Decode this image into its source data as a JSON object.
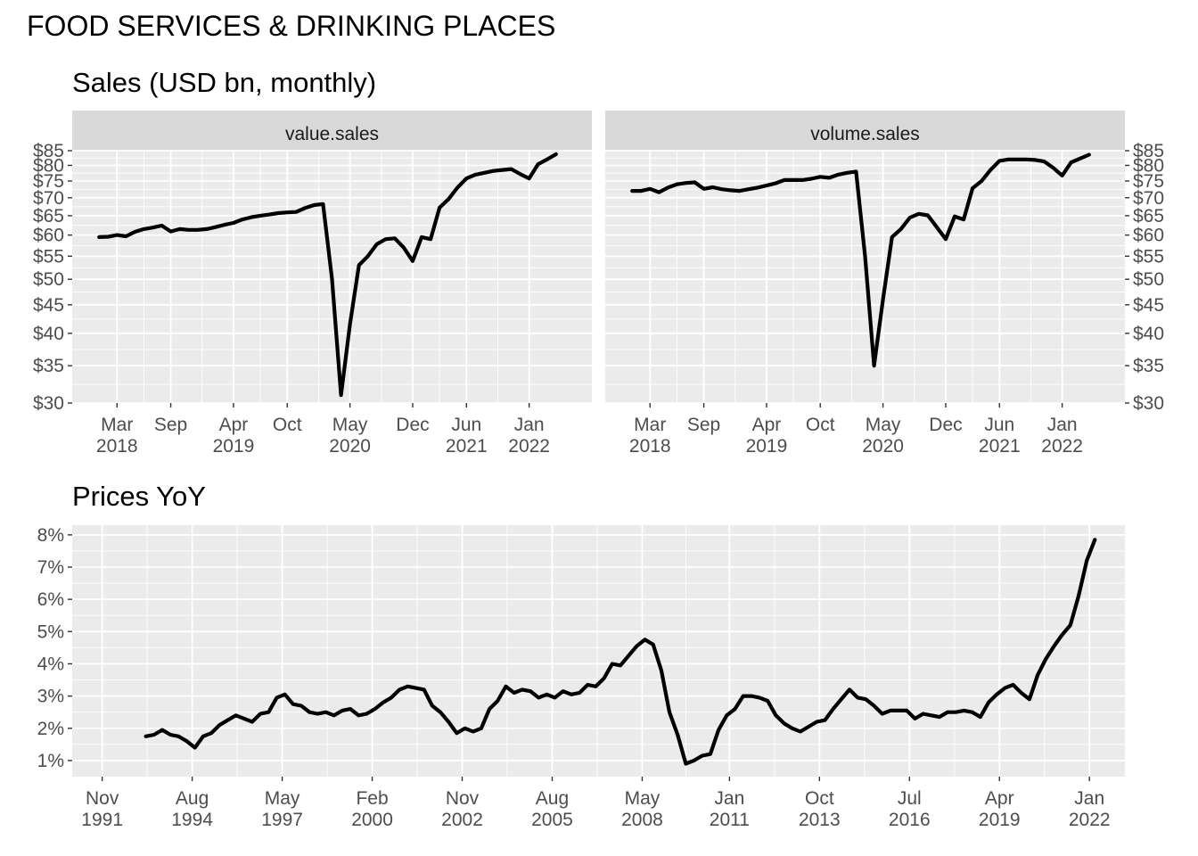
{
  "title": "FOOD SERVICES & DRINKING PLACES",
  "chart_data": [
    {
      "type": "line",
      "title": "Sales (USD bn, monthly)",
      "facet": "value.sales",
      "xlabel": "",
      "ylabel": "",
      "y_scale": "log",
      "ylim": [
        30,
        85
      ],
      "y_ticks": [
        "$30",
        "$35",
        "$40",
        "$45",
        "$50",
        "$55",
        "$60",
        "$65",
        "$70",
        "$75",
        "$80",
        "$85"
      ],
      "x_ticks": [
        [
          "Mar",
          "2018"
        ],
        [
          "Sep",
          ""
        ],
        [
          "Apr",
          "2019"
        ],
        [
          "Oct",
          ""
        ],
        [
          "May",
          "2020"
        ],
        [
          "Dec",
          ""
        ],
        [
          "Jun",
          "2021"
        ],
        [
          "Jan",
          "2022"
        ]
      ],
      "x_tick_dates": [
        "2018-03-01",
        "2018-09-01",
        "2019-04-01",
        "2019-10-01",
        "2020-05-01",
        "2020-12-01",
        "2021-06-01",
        "2022-01-01"
      ],
      "x_range": [
        "2017-10-01",
        "2022-08-01"
      ],
      "grid": true,
      "x": [
        "2018-01",
        "2018-02",
        "2018-03",
        "2018-04",
        "2018-05",
        "2018-06",
        "2018-07",
        "2018-08",
        "2018-09",
        "2018-10",
        "2018-11",
        "2018-12",
        "2019-01",
        "2019-02",
        "2019-03",
        "2019-04",
        "2019-05",
        "2019-06",
        "2019-07",
        "2019-08",
        "2019-09",
        "2019-10",
        "2019-11",
        "2019-12",
        "2020-01",
        "2020-02",
        "2020-03",
        "2020-04",
        "2020-05",
        "2020-06",
        "2020-07",
        "2020-08",
        "2020-09",
        "2020-10",
        "2020-11",
        "2020-12",
        "2021-01",
        "2021-02",
        "2021-03",
        "2021-04",
        "2021-05",
        "2021-06",
        "2021-07",
        "2021-08",
        "2021-09",
        "2021-10",
        "2021-11",
        "2021-12",
        "2022-01",
        "2022-02",
        "2022-03",
        "2022-04"
      ],
      "values": [
        59.5,
        59.6,
        60.0,
        59.7,
        60.8,
        61.5,
        61.9,
        62.4,
        60.9,
        61.5,
        61.3,
        61.3,
        61.5,
        62.0,
        62.6,
        63.1,
        64.0,
        64.6,
        65.0,
        65.3,
        65.7,
        65.9,
        66.0,
        67.1,
        67.9,
        68.2,
        50.0,
        31.0,
        41.5,
        53.0,
        55.0,
        57.8,
        59.0,
        59.2,
        57.0,
        53.9,
        59.5,
        59.0,
        67.2,
        69.6,
        73.0,
        75.8,
        77.0,
        77.6,
        78.2,
        78.5,
        78.8,
        77.2,
        75.8,
        80.4,
        82.0,
        83.8
      ]
    },
    {
      "type": "line",
      "title": "",
      "facet": "volume.sales",
      "xlabel": "",
      "ylabel": "",
      "y_scale": "log",
      "ylim": [
        30,
        85
      ],
      "y_ticks": [
        "$30",
        "$35",
        "$40",
        "$45",
        "$50",
        "$55",
        "$60",
        "$65",
        "$70",
        "$75",
        "$80",
        "$85"
      ],
      "x_ticks": [
        [
          "Mar",
          "2018"
        ],
        [
          "Sep",
          ""
        ],
        [
          "Apr",
          "2019"
        ],
        [
          "Oct",
          ""
        ],
        [
          "May",
          "2020"
        ],
        [
          "Dec",
          ""
        ],
        [
          "Jun",
          "2021"
        ],
        [
          "Jan",
          "2022"
        ]
      ],
      "x_tick_dates": [
        "2018-03-01",
        "2018-09-01",
        "2019-04-01",
        "2019-10-01",
        "2020-05-01",
        "2020-12-01",
        "2021-06-01",
        "2022-01-01"
      ],
      "x_range": [
        "2017-10-01",
        "2022-08-01"
      ],
      "grid": true,
      "x": [
        "2018-01",
        "2018-02",
        "2018-03",
        "2018-04",
        "2018-05",
        "2018-06",
        "2018-07",
        "2018-08",
        "2018-09",
        "2018-10",
        "2018-11",
        "2018-12",
        "2019-01",
        "2019-02",
        "2019-03",
        "2019-04",
        "2019-05",
        "2019-06",
        "2019-07",
        "2019-08",
        "2019-09",
        "2019-10",
        "2019-11",
        "2019-12",
        "2020-01",
        "2020-02",
        "2020-03",
        "2020-04",
        "2020-05",
        "2020-06",
        "2020-07",
        "2020-08",
        "2020-09",
        "2020-10",
        "2020-11",
        "2020-12",
        "2021-01",
        "2021-02",
        "2021-03",
        "2021-04",
        "2021-05",
        "2021-06",
        "2021-07",
        "2021-08",
        "2021-09",
        "2021-10",
        "2021-11",
        "2021-12",
        "2022-01",
        "2022-02",
        "2022-03",
        "2022-04"
      ],
      "values": [
        72.0,
        72.0,
        72.6,
        71.6,
        73.0,
        74.0,
        74.4,
        74.6,
        72.6,
        73.1,
        72.5,
        72.2,
        72.0,
        72.5,
        73.0,
        73.6,
        74.3,
        75.3,
        75.3,
        75.3,
        75.7,
        76.3,
        76.0,
        77.0,
        77.6,
        78.0,
        55.0,
        35.0,
        46.0,
        59.5,
        61.5,
        64.5,
        65.5,
        65.1,
        62.0,
        59.0,
        64.8,
        64.0,
        72.8,
        75.0,
        78.5,
        81.5,
        82.0,
        82.0,
        82.0,
        81.8,
        81.3,
        79.2,
        76.7,
        81.0,
        82.3,
        83.6
      ]
    },
    {
      "type": "line",
      "title": "Prices YoY",
      "xlabel": "",
      "ylabel": "",
      "ylim": [
        0.5,
        8.3
      ],
      "y_ticks": [
        "1%",
        "2%",
        "3%",
        "4%",
        "5%",
        "6%",
        "7%",
        "8%"
      ],
      "x_ticks": [
        [
          "Nov",
          "1991"
        ],
        [
          "Aug",
          "1994"
        ],
        [
          "May",
          "1997"
        ],
        [
          "Feb",
          "2000"
        ],
        [
          "Nov",
          "2002"
        ],
        [
          "Aug",
          "2005"
        ],
        [
          "May",
          "2008"
        ],
        [
          "Jan",
          "2011"
        ],
        [
          "Oct",
          "2013"
        ],
        [
          "Jul",
          "2016"
        ],
        [
          "Apr",
          "2019"
        ],
        [
          "Jan",
          "2022"
        ]
      ],
      "x_tick_dates": [
        "1991-11-01",
        "1994-08-01",
        "1997-05-01",
        "2000-02-01",
        "2002-11-01",
        "2005-08-01",
        "2008-05-01",
        "2011-01-01",
        "2013-10-01",
        "2016-07-01",
        "2019-04-01",
        "2022-01-01"
      ],
      "x_range": [
        "1990-12-01",
        "2023-02-01"
      ],
      "grid": true,
      "x": [
        "1993-03",
        "1993-06",
        "1993-09",
        "1993-12",
        "1994-03",
        "1994-06",
        "1994-09",
        "1994-12",
        "1995-03",
        "1995-06",
        "1995-09",
        "1995-12",
        "1996-03",
        "1996-06",
        "1996-09",
        "1996-12",
        "1997-03",
        "1997-06",
        "1997-09",
        "1997-12",
        "1998-03",
        "1998-06",
        "1998-09",
        "1998-12",
        "1999-03",
        "1999-06",
        "1999-09",
        "1999-12",
        "2000-03",
        "2000-06",
        "2000-09",
        "2000-12",
        "2001-03",
        "2001-06",
        "2001-09",
        "2001-12",
        "2002-03",
        "2002-06",
        "2002-09",
        "2002-12",
        "2003-03",
        "2003-06",
        "2003-09",
        "2003-12",
        "2004-03",
        "2004-06",
        "2004-09",
        "2004-12",
        "2005-03",
        "2005-06",
        "2005-09",
        "2005-12",
        "2006-03",
        "2006-06",
        "2006-09",
        "2006-12",
        "2007-03",
        "2007-06",
        "2007-09",
        "2007-12",
        "2008-03",
        "2008-06",
        "2008-09",
        "2008-12",
        "2009-03",
        "2009-06",
        "2009-09",
        "2009-12",
        "2010-03",
        "2010-06",
        "2010-09",
        "2010-12",
        "2011-03",
        "2011-06",
        "2011-09",
        "2011-12",
        "2012-03",
        "2012-06",
        "2012-09",
        "2012-12",
        "2013-03",
        "2013-06",
        "2013-09",
        "2013-12",
        "2014-03",
        "2014-06",
        "2014-09",
        "2014-12",
        "2015-03",
        "2015-06",
        "2015-09",
        "2015-12",
        "2016-03",
        "2016-06",
        "2016-09",
        "2016-12",
        "2017-03",
        "2017-06",
        "2017-09",
        "2017-12",
        "2018-03",
        "2018-06",
        "2018-09",
        "2018-12",
        "2019-03",
        "2019-06",
        "2019-09",
        "2019-12",
        "2020-03",
        "2020-06",
        "2020-09",
        "2020-12",
        "2021-03",
        "2021-06",
        "2021-09",
        "2021-12",
        "2022-03"
      ],
      "values": [
        1.75,
        1.8,
        1.95,
        1.8,
        1.75,
        1.6,
        1.4,
        1.75,
        1.85,
        2.1,
        2.25,
        2.4,
        2.3,
        2.2,
        2.45,
        2.5,
        2.95,
        3.05,
        2.75,
        2.7,
        2.5,
        2.45,
        2.5,
        2.4,
        2.55,
        2.6,
        2.4,
        2.45,
        2.6,
        2.8,
        2.95,
        3.2,
        3.3,
        3.25,
        3.2,
        2.7,
        2.5,
        2.2,
        1.85,
        2.0,
        1.9,
        2.0,
        2.6,
        2.85,
        3.3,
        3.1,
        3.2,
        3.15,
        2.95,
        3.05,
        2.95,
        3.15,
        3.05,
        3.1,
        3.35,
        3.3,
        3.55,
        4.0,
        3.95,
        4.25,
        4.55,
        4.75,
        4.6,
        3.8,
        2.5,
        1.8,
        0.9,
        1.0,
        1.15,
        1.2,
        1.95,
        2.4,
        2.6,
        3.0,
        3.0,
        2.95,
        2.85,
        2.4,
        2.15,
        2.0,
        1.9,
        2.05,
        2.2,
        2.25,
        2.6,
        2.9,
        3.2,
        2.95,
        2.9,
        2.7,
        2.45,
        2.55,
        2.55,
        2.55,
        2.3,
        2.45,
        2.4,
        2.35,
        2.5,
        2.5,
        2.55,
        2.5,
        2.35,
        2.8,
        3.05,
        3.25,
        3.35,
        3.1,
        2.9,
        3.65,
        4.15,
        4.55,
        4.9,
        5.2,
        6.1,
        7.2,
        7.85
      ]
    }
  ]
}
